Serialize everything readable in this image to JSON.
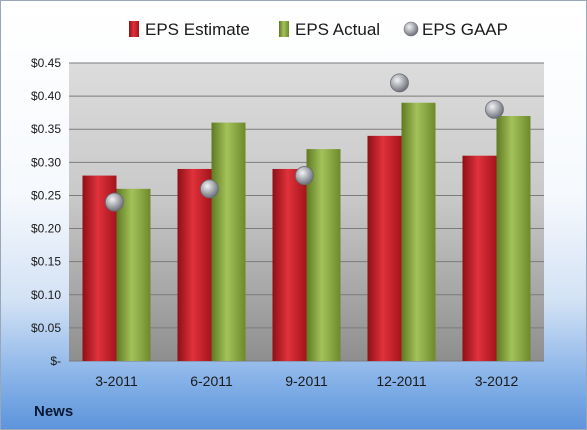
{
  "footer": {
    "label": "News"
  },
  "colors": {
    "estimate": "#c81e28",
    "actual": "#8aaa3c",
    "gaap": "#a7aab0"
  },
  "chart_data": {
    "type": "bar",
    "title": "",
    "xlabel": "",
    "ylabel": "",
    "categories": [
      "3-2011",
      "6-2011",
      "9-2011",
      "12-2011",
      "3-2012"
    ],
    "ylim": [
      0,
      0.45
    ],
    "yticks": [
      0,
      0.05,
      0.1,
      0.15,
      0.2,
      0.25,
      0.3,
      0.35,
      0.4,
      0.45
    ],
    "ytick_labels": [
      "$-",
      "$0.05",
      "$0.10",
      "$0.15",
      "$0.20",
      "$0.25",
      "$0.30",
      "$0.35",
      "$0.40",
      "$0.45"
    ],
    "grid": true,
    "legend_position": "top",
    "series": [
      {
        "name": "EPS Estimate",
        "kind": "bar",
        "values": [
          0.28,
          0.29,
          0.29,
          0.34,
          0.31
        ]
      },
      {
        "name": "EPS Actual",
        "kind": "bar",
        "values": [
          0.26,
          0.36,
          0.32,
          0.39,
          0.37
        ]
      },
      {
        "name": "EPS GAAP",
        "kind": "marker",
        "values": [
          0.24,
          0.26,
          0.28,
          0.42,
          0.38
        ]
      }
    ]
  }
}
